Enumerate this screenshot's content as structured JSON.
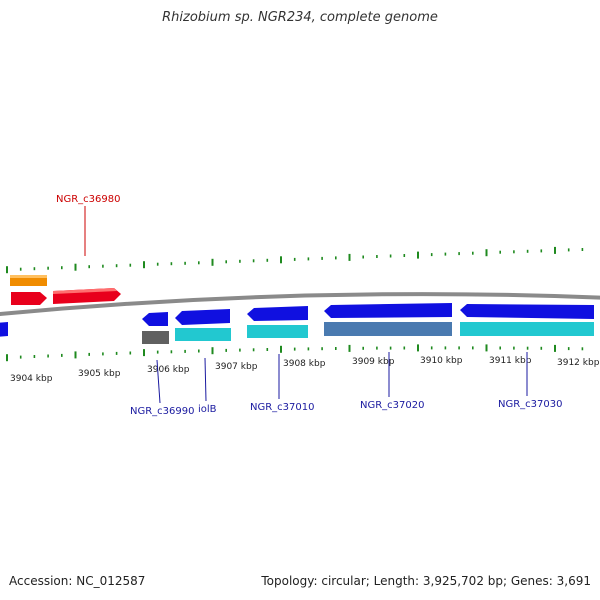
{
  "title": "Rhizobium sp. NGR234, complete genome",
  "footer": {
    "accession": "Accession: NC_012587",
    "info": "Topology: circular; Length: 3,925,702 bp; Genes: 3,691"
  },
  "ticks": [
    {
      "label": "3904 kbp"
    },
    {
      "label": "3905 kbp"
    },
    {
      "label": "3906 kbp"
    },
    {
      "label": "3907 kbp"
    },
    {
      "label": "3908 kbp"
    },
    {
      "label": "3909 kbp"
    },
    {
      "label": "3910 kbp"
    },
    {
      "label": "3911 kbp"
    },
    {
      "label": "3912 kbp"
    }
  ],
  "gene_labels": [
    {
      "text": "NGR_c36980",
      "color": "#cc0000"
    },
    {
      "text": "NGR_c36990",
      "color": "#1a1aa0"
    },
    {
      "text": "iolB",
      "color": "#1a1aa0"
    },
    {
      "text": "NGR_c37010",
      "color": "#1a1aa0"
    },
    {
      "text": "NGR_c37020",
      "color": "#1a1aa0"
    },
    {
      "text": "NGR_c37030",
      "color": "#1a1aa0"
    }
  ],
  "colors": {
    "backbone": "#8a8a8a",
    "tick": "#1f8a1f",
    "forward_gene": "#e8001c",
    "forward_other": "#f08c00",
    "reverse_gene": "#1010e0",
    "reverse_cds": "#22c8d0",
    "reverse_cds_dark": "#4a7ab0",
    "reverse_other": "#606060"
  }
}
